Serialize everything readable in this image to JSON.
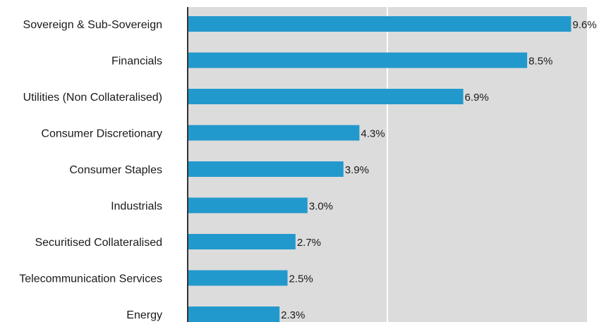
{
  "chart_data": {
    "type": "bar",
    "orientation": "horizontal",
    "categories": [
      "Sovereign & Sub-Sovereign",
      "Financials",
      "Utilities (Non Collateralised)",
      "Consumer Discretionary",
      "Consumer Staples",
      "Industrials",
      "Securitised Collateralised",
      "Telecommunication Services",
      "Energy"
    ],
    "values": [
      9.6,
      8.5,
      6.9,
      4.3,
      3.9,
      3.0,
      2.7,
      2.5,
      2.3
    ],
    "value_labels": [
      "9.6%",
      "8.5%",
      "6.9%",
      "4.3%",
      "3.9%",
      "3.0%",
      "2.7%",
      "2.5%",
      "2.3%"
    ],
    "xlim": [
      0,
      10
    ],
    "x_gridlines": [
      5
    ],
    "grid": true,
    "colors": {
      "bar": "#2299cc",
      "plot_background": "#dcdcdc",
      "gridline": "#ffffff",
      "axis": "#333333"
    }
  }
}
